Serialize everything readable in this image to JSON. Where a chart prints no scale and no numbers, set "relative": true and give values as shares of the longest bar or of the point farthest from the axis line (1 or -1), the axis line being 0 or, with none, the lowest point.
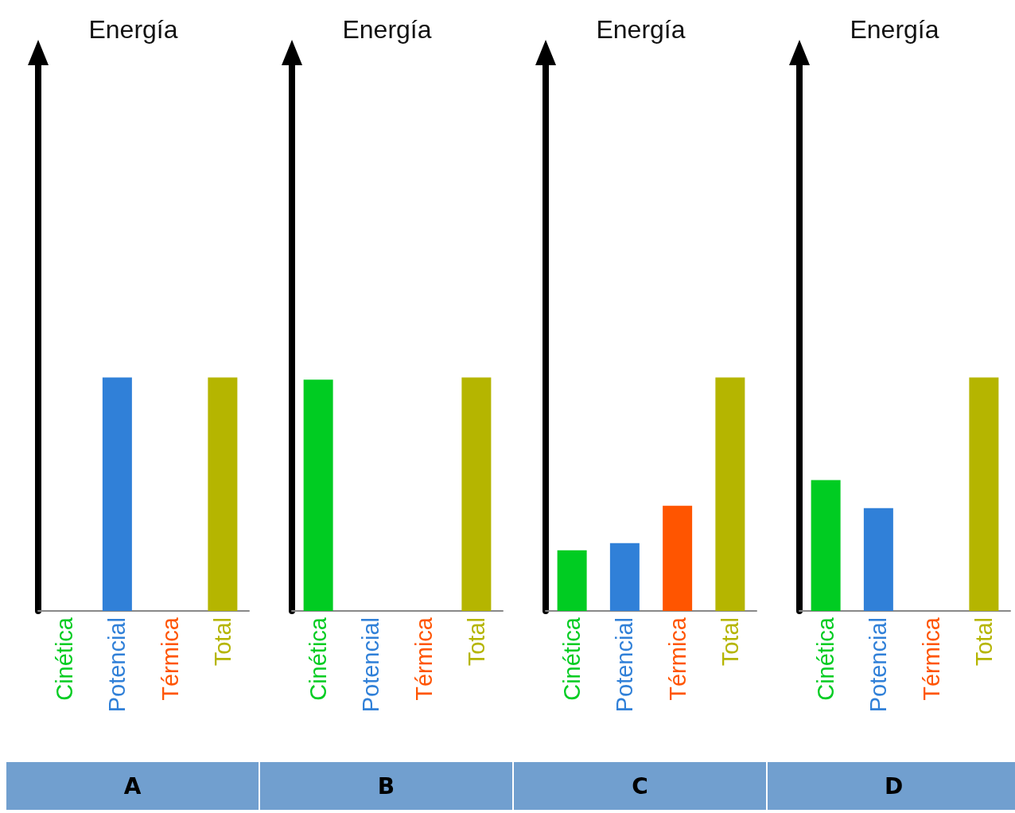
{
  "chart_data": [
    {
      "type": "bar",
      "title": "Energía",
      "relative": true,
      "categories": [
        "Cinética",
        "Potencial",
        "Térmica",
        "Total"
      ],
      "values": [
        0,
        1,
        0,
        1
      ],
      "colors": [
        "#00cc22",
        "#3080d8",
        "#ff5500",
        "#b5b500"
      ],
      "annotations": [
        "A"
      ],
      "grid": false
    },
    {
      "type": "bar",
      "title": "Energía",
      "relative": true,
      "categories": [
        "Cinética",
        "Potencial",
        "Térmica",
        "Total"
      ],
      "values": [
        0.99,
        0,
        0,
        1
      ],
      "colors": [
        "#00cc22",
        "#3080d8",
        "#ff5500",
        "#b5b500"
      ],
      "annotations": [
        "B"
      ],
      "grid": false
    },
    {
      "type": "bar",
      "title": "Energía",
      "relative": true,
      "categories": [
        "Cinética",
        "Potencial",
        "Térmica",
        "Total"
      ],
      "values": [
        0.26,
        0.29,
        0.45,
        1
      ],
      "colors": [
        "#00cc22",
        "#3080d8",
        "#ff5500",
        "#b5b500"
      ],
      "annotations": [
        "C"
      ],
      "grid": false
    },
    {
      "type": "bar",
      "title": "Energía",
      "relative": true,
      "categories": [
        "Cinética",
        "Potencial",
        "Térmica",
        "Total"
      ],
      "values": [
        0.56,
        0.44,
        0,
        1
      ],
      "colors": [
        "#00cc22",
        "#3080d8",
        "#ff5500",
        "#b5b500"
      ],
      "annotations": [
        "D"
      ],
      "grid": false
    }
  ]
}
